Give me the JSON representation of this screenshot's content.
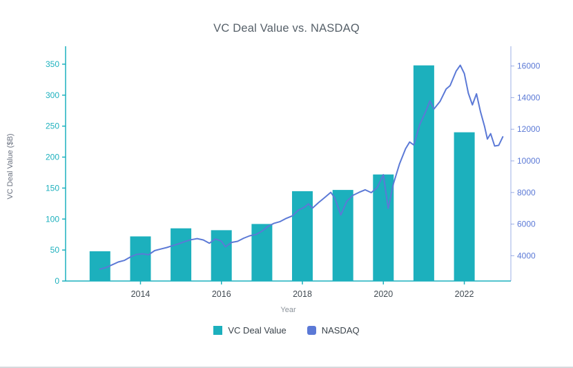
{
  "chart_data": {
    "type": "bar+line",
    "title": "VC Deal Value vs. NASDAQ",
    "xlabel": "Year",
    "x_range": [
      2012.15,
      2023.15
    ],
    "x_ticks": [
      2014,
      2016,
      2018,
      2020,
      2022
    ],
    "left_axis": {
      "label": "VC Deal Value ($B)",
      "ticks": [
        0,
        50,
        100,
        150,
        200,
        250,
        300,
        350
      ],
      "range": [
        0,
        370
      ]
    },
    "right_axis": {
      "ticks": [
        4000,
        6000,
        8000,
        10000,
        12000,
        14000,
        16000
      ],
      "range": [
        2400,
        16900
      ]
    },
    "bar_series": {
      "name": "VC Deal Value",
      "axis": "left",
      "color": "#1cb0bd",
      "categories": [
        2013,
        2014,
        2015,
        2016,
        2017,
        2018,
        2019,
        2020,
        2021,
        2022
      ],
      "values": [
        48,
        72,
        85,
        82,
        92,
        145,
        147,
        172,
        348,
        240
      ]
    },
    "line_series": {
      "name": "NASDAQ",
      "axis": "right",
      "color": "#5b79d6",
      "points": [
        [
          2013.0,
          3150
        ],
        [
          2013.15,
          3250
        ],
        [
          2013.3,
          3420
        ],
        [
          2013.45,
          3600
        ],
        [
          2013.6,
          3700
        ],
        [
          2013.75,
          3920
        ],
        [
          2013.9,
          4080
        ],
        [
          2014.05,
          4120
        ],
        [
          2014.2,
          4060
        ],
        [
          2014.35,
          4320
        ],
        [
          2014.5,
          4420
        ],
        [
          2014.65,
          4520
        ],
        [
          2014.8,
          4640
        ],
        [
          2014.95,
          4760
        ],
        [
          2015.1,
          4900
        ],
        [
          2015.25,
          5010
        ],
        [
          2015.4,
          5080
        ],
        [
          2015.55,
          5000
        ],
        [
          2015.7,
          4790
        ],
        [
          2015.85,
          5060
        ],
        [
          2016.0,
          4920
        ],
        [
          2016.1,
          4560
        ],
        [
          2016.25,
          4840
        ],
        [
          2016.4,
          4910
        ],
        [
          2016.55,
          5110
        ],
        [
          2016.7,
          5260
        ],
        [
          2016.85,
          5340
        ],
        [
          2017.0,
          5550
        ],
        [
          2017.15,
          5860
        ],
        [
          2017.3,
          6050
        ],
        [
          2017.45,
          6160
        ],
        [
          2017.6,
          6360
        ],
        [
          2017.75,
          6520
        ],
        [
          2017.9,
          6880
        ],
        [
          2018.05,
          7070
        ],
        [
          2018.15,
          7280
        ],
        [
          2018.25,
          7010
        ],
        [
          2018.4,
          7360
        ],
        [
          2018.55,
          7680
        ],
        [
          2018.7,
          8010
        ],
        [
          2018.8,
          7650
        ],
        [
          2018.95,
          6580
        ],
        [
          2019.1,
          7450
        ],
        [
          2019.25,
          7820
        ],
        [
          2019.4,
          8010
        ],
        [
          2019.55,
          8170
        ],
        [
          2019.7,
          7990
        ],
        [
          2019.85,
          8320
        ],
        [
          2020.0,
          9120
        ],
        [
          2020.12,
          6990
        ],
        [
          2020.25,
          8570
        ],
        [
          2020.4,
          9820
        ],
        [
          2020.55,
          10770
        ],
        [
          2020.65,
          11190
        ],
        [
          2020.75,
          11010
        ],
        [
          2020.9,
          12300
        ],
        [
          2021.05,
          13150
        ],
        [
          2021.15,
          13790
        ],
        [
          2021.25,
          13280
        ],
        [
          2021.4,
          13760
        ],
        [
          2021.55,
          14540
        ],
        [
          2021.65,
          14760
        ],
        [
          2021.8,
          15680
        ],
        [
          2021.9,
          16050
        ],
        [
          2022.0,
          15520
        ],
        [
          2022.1,
          14280
        ],
        [
          2022.2,
          13540
        ],
        [
          2022.3,
          14240
        ],
        [
          2022.4,
          13110
        ],
        [
          2022.5,
          12180
        ],
        [
          2022.57,
          11380
        ],
        [
          2022.65,
          11720
        ],
        [
          2022.75,
          10940
        ],
        [
          2022.85,
          10980
        ],
        [
          2022.95,
          11520
        ]
      ]
    },
    "legend": [
      {
        "label": "VC Deal Value",
        "color": "#1cb0bd"
      },
      {
        "label": "NASDAQ",
        "color": "#5b79d6"
      }
    ]
  }
}
